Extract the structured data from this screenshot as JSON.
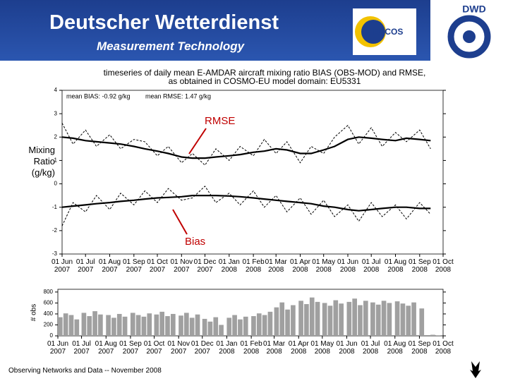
{
  "header": {
    "title": "Deutscher Wetterdienst",
    "subtitle": "Measurement Technology",
    "logos": [
      "EUCOS",
      "DWD"
    ]
  },
  "footer": "Observing Networks and Data -- November 2008",
  "chart_data": [
    {
      "type": "line",
      "title": "timeseries of daily mean E-AMDAR aircraft mixing ratio BIAS (OBS-MOD) and RMSE,",
      "subtitle": "as obtained in COSMO-EU model domain: EU5331",
      "y_label": "Mixing Ratio (g/kg)",
      "annotations": [
        "mean BIAS:  -0.92 g/kg",
        "mean RMSE:   1.47 g/kg",
        "RMSE",
        "Bias"
      ],
      "x": [
        "2007-06-01",
        "2007-06-15",
        "2007-07-01",
        "2007-07-15",
        "2007-08-01",
        "2007-08-15",
        "2007-09-01",
        "2007-09-15",
        "2007-10-01",
        "2007-10-15",
        "2007-11-01",
        "2007-11-15",
        "2007-12-01",
        "2007-12-15",
        "2008-01-01",
        "2008-01-15",
        "2008-02-01",
        "2008-02-15",
        "2008-03-01",
        "2008-03-15",
        "2008-04-01",
        "2008-04-15",
        "2008-05-01",
        "2008-05-15",
        "2008-06-01",
        "2008-06-15",
        "2008-07-01",
        "2008-07-15",
        "2008-08-01",
        "2008-08-15",
        "2008-09-01",
        "2008-09-15"
      ],
      "series": [
        {
          "color": "#000000",
          "linestyle": "dashed",
          "values": [
            2.6,
            1.7,
            2.3,
            1.6,
            2.1,
            1.5,
            1.9,
            1.8,
            1.2,
            1.6,
            0.9,
            1.3,
            0.8,
            1.5,
            1.0,
            1.6,
            1.2,
            1.9,
            1.3,
            1.8,
            0.9,
            1.6,
            1.3,
            2.0,
            2.5,
            1.7,
            2.4,
            1.6,
            2.2,
            1.8,
            2.3,
            1.5
          ]
        },
        {
          "color": "#000000",
          "linestyle": "solid",
          "values": [
            2.0,
            1.95,
            1.85,
            1.8,
            1.75,
            1.7,
            1.6,
            1.5,
            1.4,
            1.3,
            1.15,
            1.1,
            1.1,
            1.15,
            1.2,
            1.25,
            1.35,
            1.4,
            1.5,
            1.45,
            1.3,
            1.3,
            1.45,
            1.6,
            1.9,
            2.0,
            1.95,
            1.9,
            1.85,
            1.95,
            1.9,
            1.85
          ]
        },
        {
          "color": "#000000",
          "linestyle": "dashed",
          "values": [
            -1.8,
            -0.8,
            -1.2,
            -0.5,
            -1.1,
            -0.4,
            -0.9,
            -0.3,
            -0.8,
            -0.2,
            -0.7,
            -0.6,
            -0.1,
            -0.8,
            -0.4,
            -0.9,
            -0.3,
            -1.0,
            -0.5,
            -1.2,
            -0.6,
            -1.3,
            -0.7,
            -1.4,
            -0.9,
            -1.6,
            -0.8,
            -1.4,
            -0.9,
            -1.5,
            -0.8,
            -1.3
          ]
        },
        {
          "color": "#000000",
          "linestyle": "solid",
          "values": [
            -1.0,
            -0.95,
            -0.9,
            -0.85,
            -0.8,
            -0.75,
            -0.7,
            -0.65,
            -0.6,
            -0.58,
            -0.55,
            -0.5,
            -0.5,
            -0.5,
            -0.52,
            -0.55,
            -0.6,
            -0.65,
            -0.7,
            -0.75,
            -0.8,
            -0.85,
            -0.95,
            -1.0,
            -1.1,
            -1.15,
            -1.1,
            -1.05,
            -1.0,
            -1.0,
            -1.05,
            -1.05
          ]
        }
      ],
      "xlim": [
        "2007-06-01",
        "2008-10-01"
      ],
      "xticks": [
        {
          "value": "2007-06-01",
          "label": "01 Jun 2007"
        },
        {
          "value": "2007-07-01",
          "label": "01 Jul 2007"
        },
        {
          "value": "2007-08-01",
          "label": "01 Aug 2007"
        },
        {
          "value": "2007-09-01",
          "label": "01 Sep 2007"
        },
        {
          "value": "2007-10-01",
          "label": "01 Oct 2007"
        },
        {
          "value": "2007-11-01",
          "label": "01 Nov 2007"
        },
        {
          "value": "2007-12-01",
          "label": "01 Dec 2007"
        },
        {
          "value": "2008-01-01",
          "label": "01 Jan 2008"
        },
        {
          "value": "2008-02-01",
          "label": "01 Feb 2008"
        },
        {
          "value": "2008-03-01",
          "label": "01 Mar 2008"
        },
        {
          "value": "2008-04-01",
          "label": "01 Apr 2008"
        },
        {
          "value": "2008-05-01",
          "label": "01 May 2008"
        },
        {
          "value": "2008-06-01",
          "label": "01 Jun 2008"
        },
        {
          "value": "2008-07-01",
          "label": "01 Jul 2008"
        },
        {
          "value": "2008-08-01",
          "label": "01 Aug 2008"
        },
        {
          "value": "2008-09-01",
          "label": "01 Sep 2008"
        },
        {
          "value": "2008-10-01",
          "label": "01 Oct 2008"
        }
      ],
      "ylim": [
        -3,
        4
      ],
      "yticks": [
        -3,
        -2,
        -1,
        0,
        1,
        2,
        3,
        4
      ]
    },
    {
      "type": "bar",
      "y_label": "# obs",
      "color": "#a0a0a0",
      "x": [
        "2007-06-01",
        "2007-06-08",
        "2007-06-15",
        "2007-06-22",
        "2007-07-01",
        "2007-07-08",
        "2007-07-15",
        "2007-07-22",
        "2007-08-01",
        "2007-08-08",
        "2007-08-15",
        "2007-08-22",
        "2007-09-01",
        "2007-09-08",
        "2007-09-15",
        "2007-09-22",
        "2007-10-01",
        "2007-10-08",
        "2007-10-15",
        "2007-10-22",
        "2007-11-01",
        "2007-11-08",
        "2007-11-15",
        "2007-11-22",
        "2007-12-01",
        "2007-12-08",
        "2007-12-15",
        "2007-12-22",
        "2008-01-01",
        "2008-01-08",
        "2008-01-15",
        "2008-01-22",
        "2008-02-01",
        "2008-02-08",
        "2008-02-15",
        "2008-02-22",
        "2008-03-01",
        "2008-03-08",
        "2008-03-15",
        "2008-03-22",
        "2008-04-01",
        "2008-04-08",
        "2008-04-15",
        "2008-04-22",
        "2008-05-01",
        "2008-05-08",
        "2008-05-15",
        "2008-05-22",
        "2008-06-01",
        "2008-06-08",
        "2008-06-15",
        "2008-06-22",
        "2008-07-01",
        "2008-07-08",
        "2008-07-15",
        "2008-07-22",
        "2008-08-01",
        "2008-08-08",
        "2008-08-15",
        "2008-08-22",
        "2008-09-01",
        "2008-09-08",
        "2008-09-15",
        "2008-09-22"
      ],
      "values": [
        340,
        410,
        380,
        300,
        420,
        360,
        450,
        390,
        380,
        330,
        400,
        350,
        420,
        380,
        350,
        410,
        390,
        440,
        360,
        400,
        370,
        420,
        330,
        390,
        310,
        260,
        340,
        200,
        330,
        380,
        300,
        350,
        360,
        410,
        380,
        440,
        520,
        610,
        480,
        560,
        640,
        580,
        700,
        620,
        600,
        550,
        650,
        590,
        620,
        680,
        560,
        640,
        610,
        570,
        640,
        600,
        630,
        590,
        550,
        610,
        500,
        0,
        20,
        10
      ],
      "xlim": [
        "2007-06-01",
        "2008-10-01"
      ],
      "xticks": [
        {
          "value": "2007-06-01",
          "label": "01 Jun 2007"
        },
        {
          "value": "2007-07-01",
          "label": "01 Jul 2007"
        },
        {
          "value": "2007-08-01",
          "label": "01 Aug 2007"
        },
        {
          "value": "2007-09-01",
          "label": "01 Sep 2007"
        },
        {
          "value": "2007-10-01",
          "label": "01 Oct 2007"
        },
        {
          "value": "2007-11-01",
          "label": "01 Nov 2007"
        },
        {
          "value": "2007-12-01",
          "label": "01 Dec 2007"
        },
        {
          "value": "2008-01-01",
          "label": "01 Jan 2008"
        },
        {
          "value": "2008-02-01",
          "label": "01 Feb 2008"
        },
        {
          "value": "2008-03-01",
          "label": "01 Mar 2008"
        },
        {
          "value": "2008-04-01",
          "label": "01 Apr 2008"
        },
        {
          "value": "2008-05-01",
          "label": "01 May 2008"
        },
        {
          "value": "2008-06-01",
          "label": "01 Jun 2008"
        },
        {
          "value": "2008-07-01",
          "label": "01 Jul 2008"
        },
        {
          "value": "2008-08-01",
          "label": "01 Aug 2008"
        },
        {
          "value": "2008-09-01",
          "label": "01 Sep 2008"
        },
        {
          "value": "2008-10-01",
          "label": "01 Oct 2008"
        }
      ],
      "ylim": [
        0,
        850
      ],
      "yticks": [
        0,
        200,
        400,
        600,
        800
      ]
    }
  ]
}
